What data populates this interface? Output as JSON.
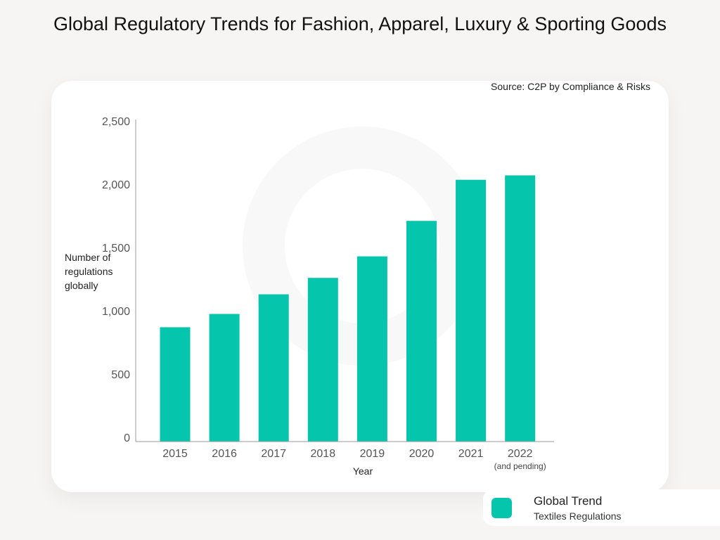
{
  "title": "Global Regulatory Trends for Fashion, Apparel, Luxury & Sporting Goods",
  "source": "Source: C2P by Compliance & Risks",
  "colors": {
    "bar": "#06c5ad",
    "axis": "#999999",
    "background": "#f6f5f3"
  },
  "chart_data": {
    "type": "bar",
    "categories": [
      "2015",
      "2016",
      "2017",
      "2018",
      "2019",
      "2020",
      "2021",
      "2022"
    ],
    "category_sublabels": {
      "2022": "(and pending)"
    },
    "values": [
      870,
      975,
      1130,
      1260,
      1430,
      1710,
      2035,
      2070
    ],
    "xlabel": "Year",
    "ylabel": "Number of\nregulations\nglobally",
    "ylim": [
      0,
      2500
    ],
    "yticks": [
      0,
      500,
      1000,
      1500,
      2000,
      2500
    ],
    "ytick_labels": [
      "0",
      "500",
      "1,000",
      "1,500",
      "2,000",
      "2,500"
    ],
    "grid": false,
    "legend": {
      "position": "bottom-right",
      "title": "Global Trend",
      "entry": "Textiles Regulations"
    }
  }
}
